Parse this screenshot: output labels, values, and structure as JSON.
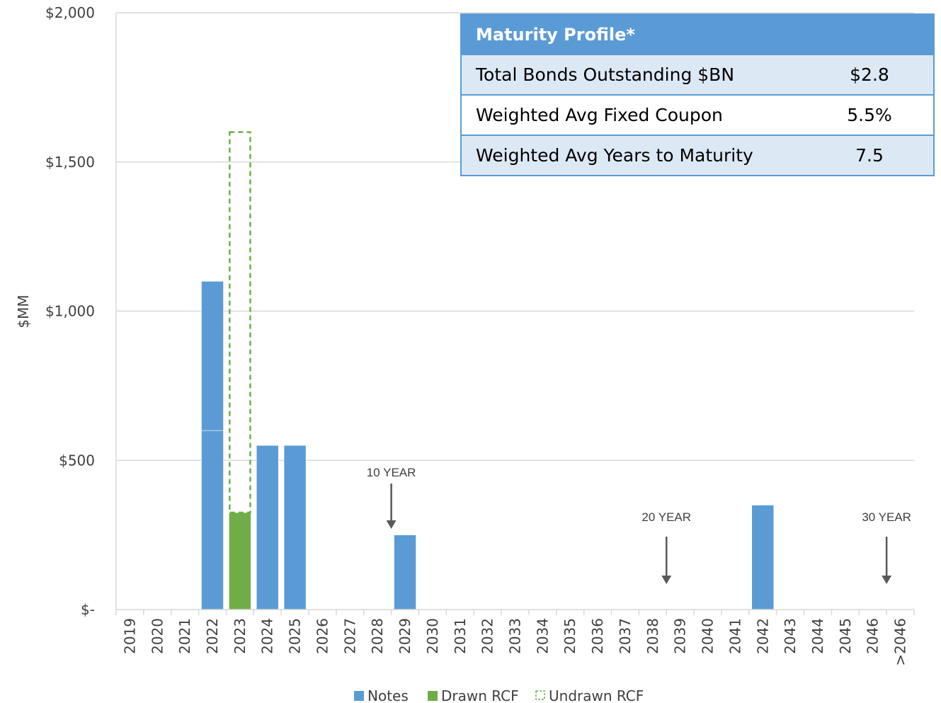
{
  "chart_data": {
    "type": "bar",
    "stacked": true,
    "ylabel": "$MM",
    "ylim": [
      0,
      2000
    ],
    "ytick_labels": [
      "$-",
      "$500",
      "$1,000",
      "$1,500",
      "$2,000"
    ],
    "ytick_values": [
      0,
      500,
      1000,
      1500,
      2000
    ],
    "grid": true,
    "categories": [
      "2019",
      "2020",
      "2021",
      "2022",
      "2023",
      "2024",
      "2025",
      "2026",
      "2027",
      "2028",
      "2029",
      "2030",
      "2031",
      "2032",
      "2033",
      "2034",
      "2035",
      "2036",
      "2037",
      "2038",
      "2039",
      "2040",
      "2041",
      "2042",
      "2043",
      "2044",
      "2045",
      "2046",
      ">2046"
    ],
    "series": [
      {
        "name": "Notes",
        "color": "#5b9bd5",
        "style": "solid",
        "values": [
          0,
          0,
          0,
          1100,
          0,
          550,
          550,
          0,
          0,
          0,
          250,
          0,
          0,
          0,
          0,
          0,
          0,
          0,
          0,
          0,
          0,
          0,
          0,
          350,
          0,
          0,
          0,
          0,
          0
        ],
        "segments": {
          "2022": [
            600,
            500
          ]
        }
      },
      {
        "name": "Drawn RCF",
        "color": "#70ad47",
        "style": "solid",
        "values": [
          0,
          0,
          0,
          0,
          325,
          0,
          0,
          0,
          0,
          0,
          0,
          0,
          0,
          0,
          0,
          0,
          0,
          0,
          0,
          0,
          0,
          0,
          0,
          0,
          0,
          0,
          0,
          0,
          0
        ]
      },
      {
        "name": "Undrawn RCF",
        "color": "#70ad47",
        "style": "dashed",
        "values": [
          0,
          0,
          0,
          0,
          1275,
          0,
          0,
          0,
          0,
          0,
          0,
          0,
          0,
          0,
          0,
          0,
          0,
          0,
          0,
          0,
          0,
          0,
          0,
          0,
          0,
          0,
          0,
          0,
          0
        ]
      }
    ],
    "annotations": [
      {
        "text": "10 YEAR",
        "category": "2029",
        "arrow": "down"
      },
      {
        "text": "20 YEAR",
        "category": "2039",
        "arrow": "down"
      },
      {
        "text": "30 YEAR",
        "category": ">2046",
        "arrow": "down"
      }
    ],
    "legend_position": "bottom"
  },
  "profile_table": {
    "title": "Maturity Profile*",
    "rows": [
      {
        "label": "Total Bonds Outstanding $BN",
        "value": "$2.8"
      },
      {
        "label": "Weighted Avg Fixed Coupon",
        "value": "5.5%"
      },
      {
        "label": "Weighted Avg Years to Maturity",
        "value": "7.5"
      }
    ]
  }
}
